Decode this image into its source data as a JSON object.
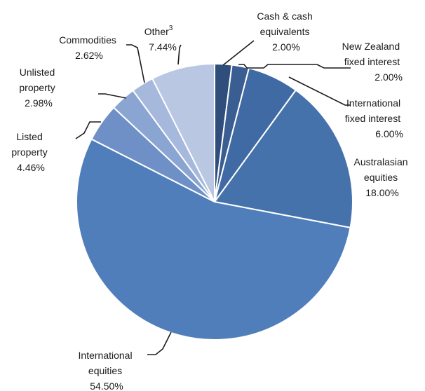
{
  "chart_data": {
    "type": "pie",
    "start_angle_deg": 0,
    "direction": "clockwise",
    "legend": "none",
    "slices": [
      {
        "name": "Cash & cash equivalents",
        "value": 2.0,
        "color": "#2f4e7c",
        "label_lines": [
          "Cash & cash",
          "equivalents",
          "2.00%"
        ]
      },
      {
        "name": "New Zealand fixed interest",
        "value": 2.0,
        "color": "#3a5d92",
        "label_lines": [
          "New Zealand",
          "fixed interest",
          "2.00%"
        ]
      },
      {
        "name": "International fixed interest",
        "value": 6.0,
        "color": "#3f6aa3",
        "label_lines": [
          "International",
          "fixed interest",
          "6.00%"
        ]
      },
      {
        "name": "Australasian equities",
        "value": 18.0,
        "color": "#4672ab",
        "label_lines": [
          "Australasian",
          "equities",
          "18.00%"
        ]
      },
      {
        "name": "International equities",
        "value": 54.5,
        "color": "#4f7ebb",
        "label_lines": [
          "International",
          "equities",
          "54.50%"
        ]
      },
      {
        "name": "Listed property",
        "value": 4.46,
        "color": "#6e90c6",
        "label_lines": [
          "Listed",
          "property",
          "4.46%"
        ]
      },
      {
        "name": "Unlisted property",
        "value": 2.98,
        "color": "#8ba5d2",
        "label_lines": [
          "Unlisted",
          "property",
          "2.98%"
        ]
      },
      {
        "name": "Commodities",
        "value": 2.62,
        "color": "#a6b9dc",
        "label_lines": [
          "Commodities",
          "2.62%"
        ]
      },
      {
        "name": "Other",
        "value": 7.44,
        "color": "#b9c7e3",
        "label_lines": [
          "Other",
          "7.44%"
        ],
        "superscript": "3"
      }
    ]
  }
}
